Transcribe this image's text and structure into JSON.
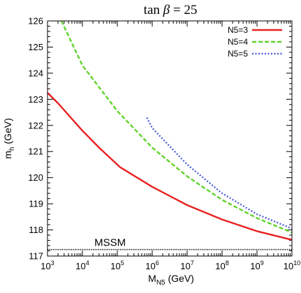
{
  "chart_data": {
    "type": "line",
    "title": "tan β = 25",
    "xlabel": "M_N5 (GeV)",
    "ylabel": "m_h (GeV)",
    "xscale": "log",
    "xlim": [
      1000,
      10000000000
    ],
    "ylim": [
      117,
      126
    ],
    "x_ticks": [
      {
        "value": 1000,
        "base": "10",
        "exp": "3"
      },
      {
        "value": 10000,
        "base": "10",
        "exp": "4"
      },
      {
        "value": 100000,
        "base": "10",
        "exp": "5"
      },
      {
        "value": 1000000,
        "base": "10",
        "exp": "6"
      },
      {
        "value": 10000000,
        "base": "10",
        "exp": "7"
      },
      {
        "value": 100000000,
        "base": "10",
        "exp": "8"
      },
      {
        "value": 1000000000,
        "base": "10",
        "exp": "9"
      },
      {
        "value": 10000000000,
        "base": "10",
        "exp": "10"
      }
    ],
    "y_ticks": [
      "117",
      "118",
      "119",
      "120",
      "121",
      "122",
      "123",
      "124",
      "125",
      "126"
    ],
    "grid": false,
    "legend_position": "top-right",
    "series": [
      {
        "name": "N5=3",
        "color": "#e8201e",
        "dash": "solid",
        "x": [
          1000,
          2000,
          10000,
          30000,
          120000,
          1000000,
          10000000,
          100000000,
          1000000000,
          10000000000
        ],
        "y": [
          123.25,
          122.85,
          121.8,
          121.15,
          120.4,
          119.65,
          118.95,
          118.4,
          117.95,
          117.62
        ]
      },
      {
        "name": "N5=4",
        "color": "#5fd32a",
        "dash": "dashed",
        "x": [
          2500,
          10000,
          100000,
          1000000,
          10000000,
          100000000,
          1000000000,
          10000000000
        ],
        "y": [
          126,
          124.3,
          122.55,
          121.15,
          120.05,
          119.15,
          118.45,
          117.9
        ]
      },
      {
        "name": "N5=5",
        "color": "#4a5fd6",
        "dash": "dotted",
        "x": [
          700000,
          1000000,
          10000000,
          100000000,
          1000000000,
          10000000000
        ],
        "y": [
          122.3,
          121.9,
          120.5,
          119.4,
          118.6,
          118.05
        ]
      }
    ],
    "reference_line": {
      "label": "MSSM",
      "y": 117.25,
      "color": "#000000"
    }
  }
}
